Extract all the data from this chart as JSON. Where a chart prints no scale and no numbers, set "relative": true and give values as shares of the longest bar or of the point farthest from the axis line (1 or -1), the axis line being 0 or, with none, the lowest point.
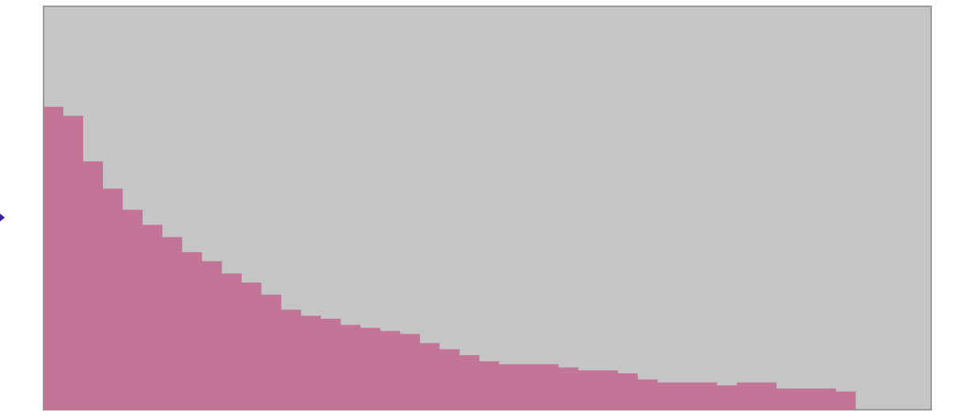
{
  "chart_data": {
    "type": "area",
    "relative": true,
    "categories": [
      null,
      null,
      null,
      null,
      null,
      null,
      null,
      null,
      null,
      null,
      null,
      null,
      null,
      null,
      null,
      null,
      null,
      null,
      null,
      null,
      null,
      null,
      null,
      null,
      null,
      null,
      null,
      null,
      null,
      null,
      null,
      null,
      null,
      null,
      null,
      null,
      null,
      null,
      null,
      null,
      null,
      null
    ],
    "series": [
      {
        "color": "#c27596",
        "values": [
          1.0,
          0.97,
          0.82,
          0.73,
          0.66,
          0.61,
          0.57,
          0.52,
          0.49,
          0.45,
          0.42,
          0.38,
          0.33,
          0.31,
          0.3,
          0.28,
          0.27,
          0.26,
          0.25,
          0.22,
          0.2,
          0.18,
          0.16,
          0.15,
          0.15,
          0.15,
          0.14,
          0.13,
          0.13,
          0.12,
          0.1,
          0.09,
          0.09,
          0.09,
          0.08,
          0.09,
          0.09,
          0.07,
          0.07,
          0.07,
          0.06,
          0
        ]
      }
    ]
  }
}
